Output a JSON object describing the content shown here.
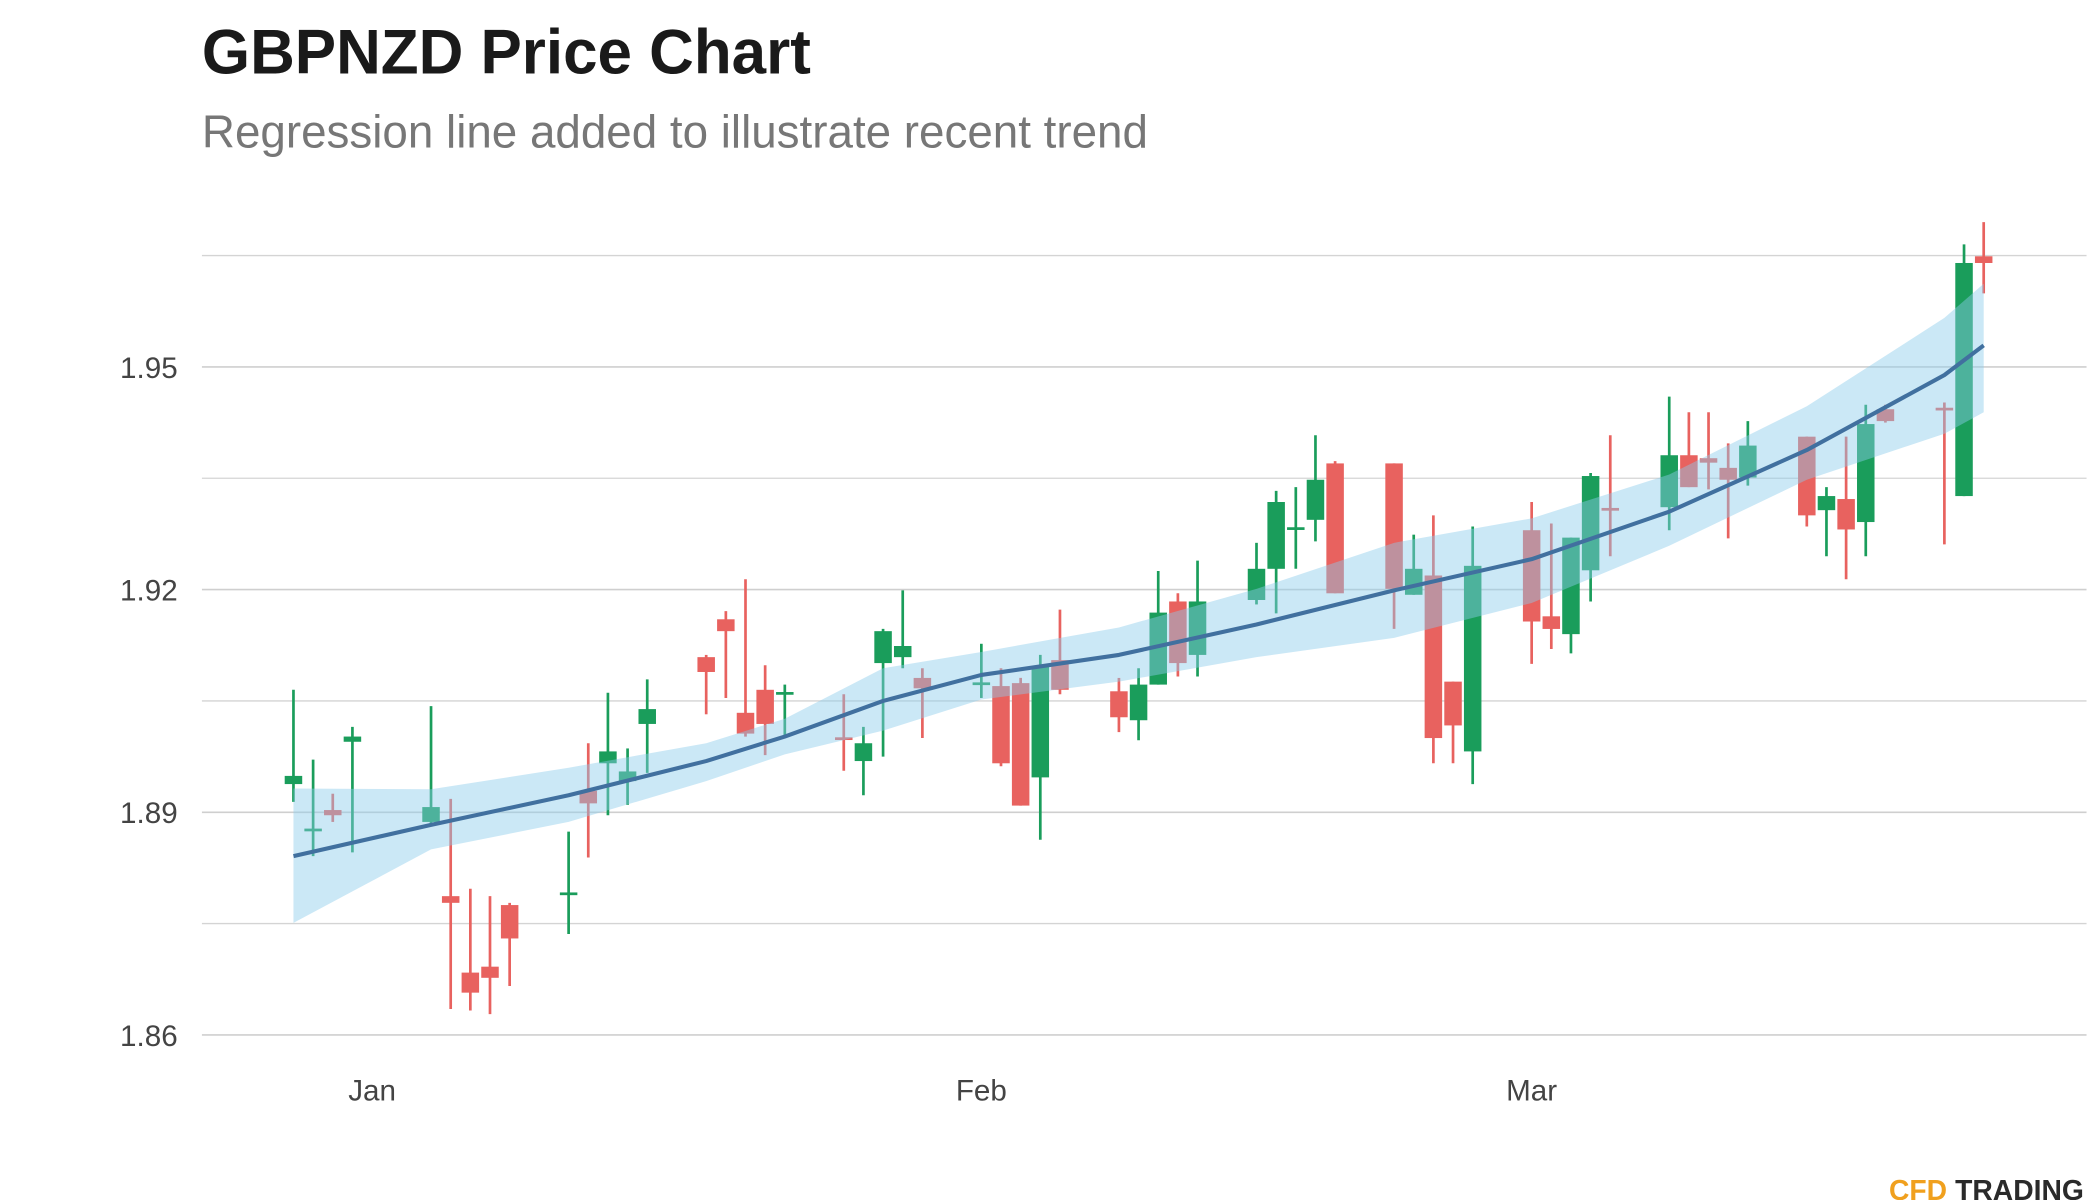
{
  "chart_data": {
    "type": "candlestick",
    "title": "GBPNZD Price Chart",
    "subtitle": "Regression line added to illustrate recent trend",
    "brand_prefix": "CFD",
    "brand_suffix": "TRADING",
    "categories": [
      null,
      null,
      null,
      null,
      "Jan",
      null,
      null,
      null,
      null,
      null,
      null,
      null,
      null,
      null,
      null,
      null,
      null,
      null,
      null,
      null,
      null,
      null,
      null,
      null,
      null,
      null,
      null,
      null,
      null,
      null,
      null,
      null,
      null,
      null,
      null,
      "Feb",
      null,
      null,
      null,
      null,
      null,
      null,
      null,
      null,
      null,
      null,
      null,
      null,
      null,
      null,
      null,
      null,
      null,
      null,
      null,
      null,
      null,
      null,
      null,
      null,
      null,
      null,
      null,
      "Mar",
      null,
      null,
      null,
      null,
      null,
      null,
      null,
      null,
      null,
      null,
      null,
      null,
      null,
      null,
      null,
      null,
      null,
      null,
      null,
      null,
      null,
      null,
      null
    ],
    "open": [
      1.8938,
      1.8876,
      1.8903,
      1.8995,
      null,
      null,
      null,
      1.8887,
      1.8787,
      1.8684,
      1.8692,
      1.8775,
      null,
      null,
      1.879,
      1.8929,
      1.8966,
      1.8942,
      1.9019,
      null,
      null,
      1.9109,
      1.916,
      1.9034,
      1.9065,
      1.9059,
      null,
      null,
      1.9001,
      1.8969,
      1.9101,
      1.9109,
      1.9081,
      null,
      null,
      1.9073,
      1.907,
      1.9074,
      1.8947,
      1.9105,
      null,
      null,
      1.9063,
      1.9024,
      1.9072,
      1.9184,
      1.9112,
      null,
      null,
      1.9186,
      1.9228,
      1.9283,
      1.9294,
      1.937,
      null,
      null,
      1.937,
      1.9193,
      1.9219,
      1.9076,
      1.8982,
      null,
      null,
      1.928,
      1.9164,
      1.914,
      1.9226,
      1.931,
      null,
      null,
      1.9311,
      1.9381,
      1.9377,
      1.9364,
      1.9351,
      null,
      null,
      1.9406,
      1.9307,
      1.9322,
      1.9291,
      1.9443,
      null,
      null,
      1.9445,
      1.9326,
      1.9649
    ],
    "high": [
      1.9065,
      1.8971,
      1.8925,
      1.9015,
      null,
      null,
      null,
      1.9043,
      1.8918,
      1.8797,
      1.8787,
      1.8778,
      null,
      null,
      1.8874,
      1.8993,
      1.9061,
      1.8986,
      1.9079,
      null,
      null,
      1.9112,
      1.9171,
      1.9214,
      1.9098,
      1.9072,
      null,
      null,
      1.9059,
      1.9015,
      1.9147,
      1.9199,
      1.9094,
      null,
      null,
      1.9127,
      1.9094,
      1.9081,
      1.9112,
      1.9173,
      null,
      null,
      1.9081,
      1.9094,
      1.9225,
      1.9195,
      1.9239,
      null,
      null,
      1.9263,
      1.9333,
      1.9338,
      1.9408,
      1.9373,
      null,
      null,
      1.937,
      1.9274,
      1.93,
      1.9076,
      1.9285,
      null,
      null,
      1.9318,
      1.9289,
      1.927,
      1.9357,
      1.9408,
      null,
      null,
      1.946,
      1.9439,
      1.9439,
      1.9397,
      1.9427,
      null,
      null,
      1.9406,
      1.9338,
      1.9406,
      1.9449,
      1.9449,
      null,
      null,
      1.9452,
      1.9665,
      1.9695
    ],
    "low": [
      1.8914,
      1.8841,
      1.8887,
      1.8846,
      null,
      null,
      null,
      1.8883,
      1.8635,
      1.8633,
      1.8628,
      1.8666,
      null,
      null,
      1.8736,
      1.8839,
      1.8896,
      1.891,
      1.8953,
      null,
      null,
      1.9032,
      1.9054,
      1.9002,
      1.8977,
      1.9,
      null,
      null,
      1.8956,
      1.8923,
      1.8975,
      1.9094,
      1.9,
      null,
      null,
      1.9054,
      1.8962,
      1.8909,
      1.8863,
      1.9059,
      null,
      null,
      1.9008,
      1.8997,
      1.9072,
      1.9083,
      1.9083,
      null,
      null,
      1.918,
      1.9168,
      1.9228,
      1.9265,
      1.9195,
      null,
      null,
      1.9147,
      1.9193,
      1.8966,
      1.8966,
      1.8938,
      null,
      null,
      1.91,
      1.912,
      1.9114,
      1.9184,
      1.9245,
      null,
      null,
      1.928,
      1.9338,
      1.9335,
      1.9269,
      1.934,
      null,
      null,
      1.9285,
      1.9245,
      1.9214,
      1.9245,
      1.9425,
      null,
      null,
      1.9261,
      1.9326,
      1.9599
    ],
    "close": [
      1.8949,
      1.8878,
      1.8896,
      1.9002,
      null,
      null,
      null,
      1.8907,
      1.8778,
      1.8657,
      1.8677,
      1.873,
      null,
      null,
      1.8792,
      1.8912,
      1.8982,
      1.8955,
      1.9039,
      null,
      null,
      1.9089,
      1.9144,
      1.9006,
      1.9019,
      1.9062,
      null,
      null,
      1.9,
      1.8993,
      1.9144,
      1.9124,
      1.9067,
      null,
      null,
      1.9075,
      1.8966,
      1.8909,
      1.9096,
      1.9065,
      null,
      null,
      1.9028,
      1.9072,
      1.9169,
      1.9101,
      1.9184,
      null,
      null,
      1.9228,
      1.9318,
      1.9284,
      1.9348,
      1.9195,
      null,
      null,
      1.9201,
      1.9228,
      1.9,
      1.9017,
      1.9232,
      null,
      null,
      1.9157,
      1.9147,
      1.927,
      1.9353,
      1.9308,
      null,
      null,
      1.9381,
      1.9338,
      1.9371,
      1.9348,
      1.9394,
      null,
      null,
      1.93,
      1.9326,
      1.9281,
      1.9423,
      1.9427,
      null,
      null,
      1.9444,
      1.964,
      1.964
    ],
    "up_color": "#1a9d5b",
    "down_color": "#e8625f",
    "trend": {
      "color": "#41709f",
      "band_color": "#8ccbec",
      "x": [
        0,
        7,
        14,
        21,
        25,
        30,
        35,
        42,
        49,
        56,
        63,
        70,
        77,
        84,
        86
      ],
      "values": [
        1.8841,
        1.8883,
        1.8923,
        1.8969,
        1.9002,
        1.905,
        1.9085,
        1.9112,
        1.9153,
        1.9199,
        1.9241,
        1.9305,
        1.9388,
        1.9489,
        1.9529
      ],
      "upper": [
        1.8932,
        1.8931,
        1.896,
        1.8993,
        1.9026,
        1.9094,
        1.9116,
        1.9149,
        1.9201,
        1.9263,
        1.9296,
        1.9355,
        1.9447,
        1.9566,
        1.9612
      ],
      "lower": [
        1.8751,
        1.885,
        1.8887,
        1.8942,
        1.8978,
        1.901,
        1.9052,
        1.9076,
        1.9109,
        1.9135,
        1.9182,
        1.9259,
        1.9348,
        1.941,
        1.9439
      ]
    },
    "ylim": [
      1.857,
      1.97
    ],
    "yticks": [
      1.86,
      1.89,
      1.92,
      1.95
    ],
    "minor_yticks": [
      1.875,
      1.905,
      1.935,
      1.965
    ],
    "grid": true
  }
}
